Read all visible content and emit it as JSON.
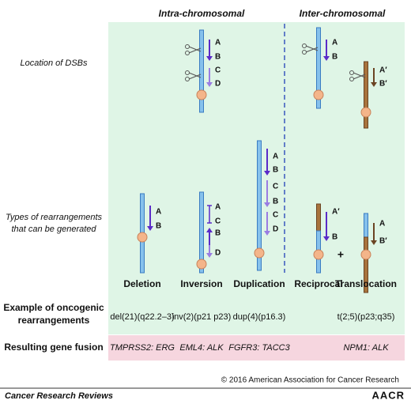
{
  "headers": {
    "intra": "Intra-chromosomal",
    "inter": "Inter-chromosomal"
  },
  "row_labels": {
    "location": "Location of DSBs",
    "types": [
      "Types of rearrangements",
      "that can be generated"
    ],
    "example": [
      "Example of oncogenic",
      "rearrangements"
    ],
    "fusion": "Resulting gene fusion"
  },
  "dsb_location": {
    "intra": [
      "A",
      "B",
      "C",
      "D"
    ],
    "inter_left": [
      "A",
      "B"
    ],
    "inter_right": [
      "A′",
      "B′"
    ]
  },
  "rearrangements": [
    {
      "name": "Deletion",
      "labels": [
        "A",
        "B"
      ],
      "example": "del(21)(q22.2–3)",
      "fusion": "TMPRSS2: ERG"
    },
    {
      "name": "Inversion",
      "labels": [
        "A",
        "C",
        "B",
        "D"
      ],
      "example": "inv(2)(p21 p23)",
      "fusion": "EML4: ALK"
    },
    {
      "name": "Duplication",
      "labels": [
        "A",
        "B",
        "C",
        "B",
        "C",
        "D"
      ],
      "example": "dup(4)(p16.3)",
      "fusion": "FGFR3: TACC3"
    },
    {
      "name": "Reciprocal",
      "labels": [
        "A′",
        "B"
      ]
    },
    {
      "name": "Translocation",
      "labels": [
        "A",
        "B′"
      ],
      "example": "t(2;5)(p23;q35)",
      "fusion": "NPM1: ALK"
    }
  ],
  "plus": "+",
  "copyright": "© 2016 American Association for Cancer Research",
  "footer": {
    "journal": "Cancer Research Reviews",
    "logo": "AACR"
  }
}
